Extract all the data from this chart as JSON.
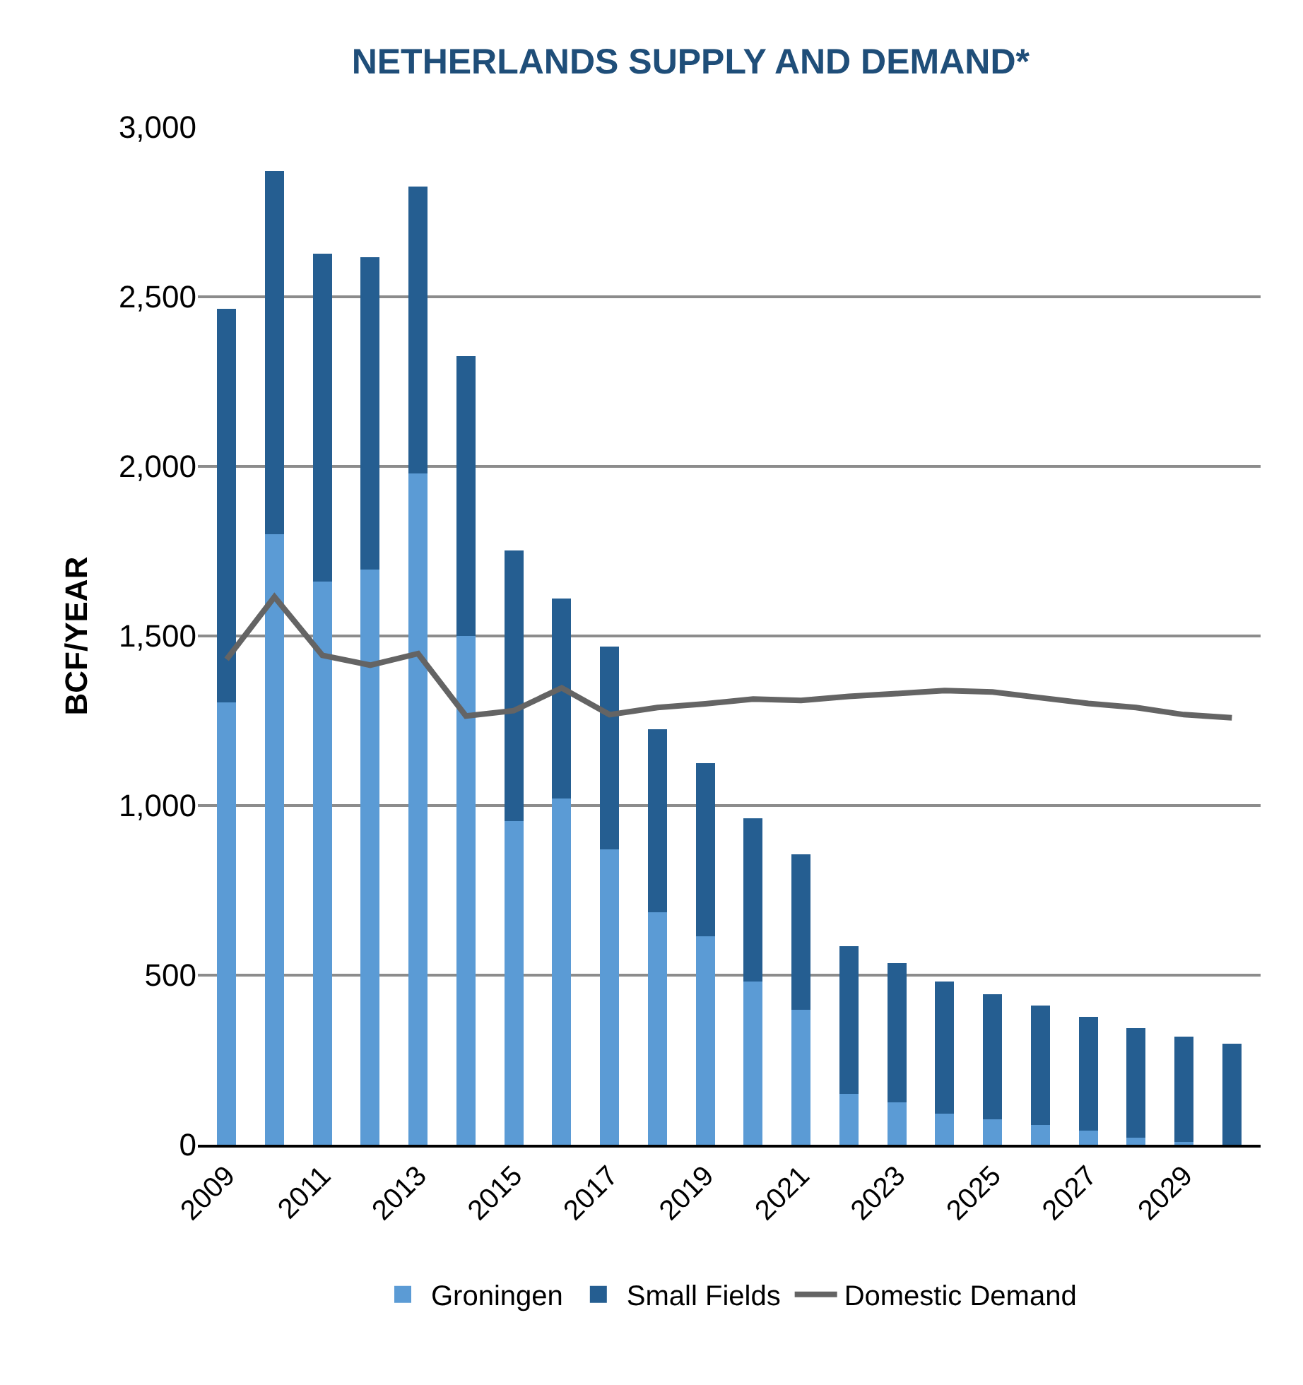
{
  "chart_data": {
    "type": "bar",
    "title": "NETHERLANDS SUPPLY AND DEMAND*",
    "ylabel": "BCF/YEAR",
    "categories": [
      "2009",
      null,
      "2011",
      null,
      "2013",
      null,
      "2015",
      null,
      "2017",
      null,
      "2019",
      null,
      "2021",
      null,
      "2023",
      null,
      "2025",
      null,
      "2027",
      null,
      "2029",
      null
    ],
    "stacked": true,
    "series": [
      {
        "name": "Groningen",
        "color": "#5b9bd5",
        "values": [
          1305,
          1800,
          1660,
          1695,
          1980,
          1500,
          954,
          1021,
          870,
          686,
          615,
          481,
          397,
          151,
          126,
          92,
          75,
          59,
          42,
          21,
          8,
          0
        ]
      },
      {
        "name": "Small Fields",
        "color": "#255e91",
        "values": [
          1160,
          1070,
          968,
          921,
          844,
          826,
          799,
          590,
          599,
          540,
          510,
          481,
          460,
          435,
          410,
          389,
          369,
          351,
          335,
          322,
          310,
          297
        ]
      },
      {
        "name": "Domestic Demand",
        "type": "line",
        "color": "#646464",
        "values": [
          1431,
          1615,
          1443,
          1414,
          1448,
          1264,
          1280,
          1347,
          1268,
          1289,
          1300,
          1314,
          1310,
          1322,
          1330,
          1339,
          1335,
          1318,
          1301,
          1289,
          1268,
          1259
        ]
      }
    ],
    "ylim": [
      0,
      3000
    ],
    "yticks": [
      {
        "value": 0,
        "label": "0"
      },
      {
        "value": 500,
        "label": "500"
      },
      {
        "value": 1000,
        "label": "1,000"
      },
      {
        "value": 1500,
        "label": "1,500"
      },
      {
        "value": 2000,
        "label": "2,000"
      },
      {
        "value": 2500,
        "label": "2,500"
      },
      {
        "value": 3000,
        "label": "3,000"
      }
    ],
    "grid": "y",
    "legend": "bottom",
    "marker": "none",
    "line_style": "solid"
  }
}
